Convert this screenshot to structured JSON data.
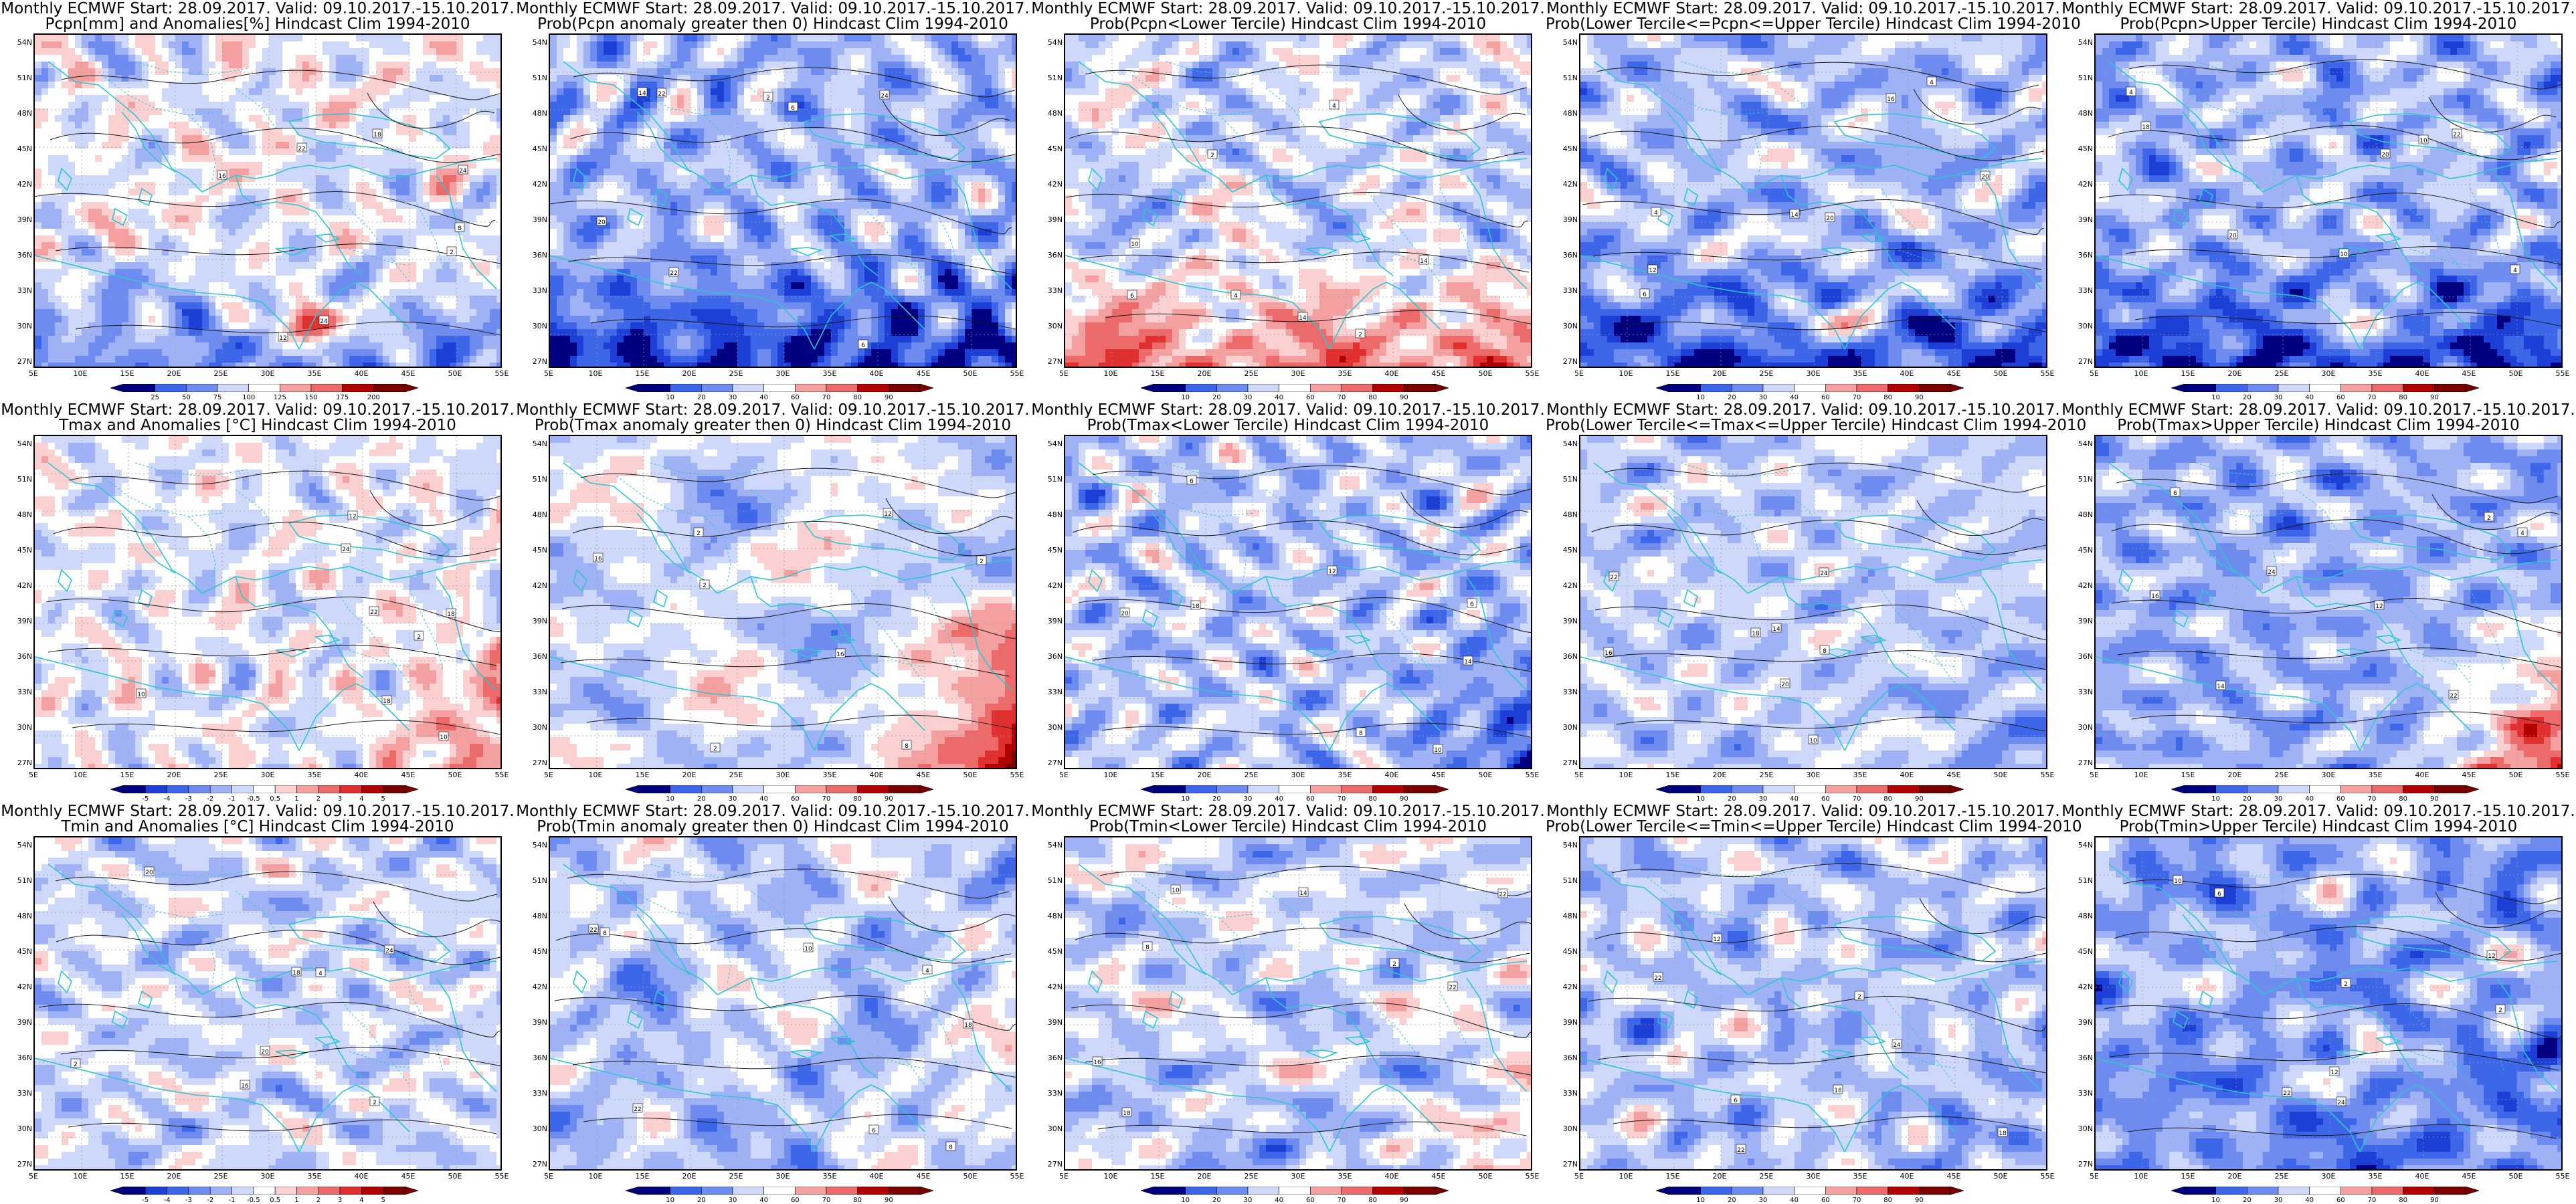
{
  "header": "Monthly ECMWF Start: 28.09.2017. Valid: 09.10.2017.-15.10.2017.",
  "lat_labels": [
    "54N",
    "51N",
    "48N",
    "45N",
    "42N",
    "39N",
    "36N",
    "33N",
    "30N",
    "27N"
  ],
  "lon_labels": [
    "5E",
    "10E",
    "15E",
    "20E",
    "25E",
    "30E",
    "35E",
    "40E",
    "45E",
    "50E",
    "55E"
  ],
  "contour_labels": [
    "2",
    "4",
    "6",
    "8",
    "10",
    "12",
    "14",
    "16",
    "18",
    "20",
    "22",
    "24"
  ],
  "colorbars": {
    "pcpn_anom": [
      "25",
      "50",
      "75",
      "100",
      "125",
      "150",
      "175",
      "200"
    ],
    "temp_anom": [
      "-5",
      "-4",
      "-3",
      "-2",
      "-1",
      "-0.5",
      "0.5",
      "1",
      "2",
      "3",
      "4",
      "5"
    ],
    "prob": [
      "10",
      "20",
      "30",
      "40",
      "60",
      "70",
      "80",
      "90"
    ]
  },
  "colors": {
    "palette": [
      "#000080",
      "#1d3fd6",
      "#3e66e8",
      "#6e8cf0",
      "#9fb2f5",
      "#cdd8fa",
      "#ffffff",
      "#fbd0d0",
      "#f4a0a0",
      "#ec6a6a",
      "#e03030",
      "#b00000",
      "#7a0000"
    ],
    "coast": "#2ec6d0",
    "contour": "#1a1a1a",
    "grid": "#9a9a9a"
  },
  "panels": [
    {
      "line2": "Pcpn[mm] and Anomalies[%] Hindcast Clim 1994-2010",
      "cbar": "pcpn_anom",
      "bias": -0.3,
      "south": -2.6,
      "southPos": 1,
      "warmEast": 0,
      "seed": 11
    },
    {
      "line2": "Prob(Pcpn anomaly greater then 0) Hindcast Clim 1994-2010",
      "cbar": "prob",
      "bias": -1.8,
      "south": -3.5,
      "southPos": 0,
      "warmEast": 0,
      "seed": 12
    },
    {
      "line2": "Prob(Pcpn<Lower Tercile) Hindcast Clim 1994-2010",
      "cbar": "prob",
      "bias": -0.9,
      "south": 3.6,
      "southPos": 0,
      "warmEast": 0,
      "seed": 13
    },
    {
      "line2": "Prob(Lower Tercile<=Pcpn<=Upper Tercile) Hindcast Clim 1994-2010",
      "cbar": "prob",
      "bias": -1.6,
      "south": -3.2,
      "southPos": 1,
      "warmEast": 0,
      "seed": 14
    },
    {
      "line2": "Prob(Pcpn>Upper Tercile) Hindcast Clim 1994-2010",
      "cbar": "prob",
      "bias": -1.8,
      "south": -3.5,
      "southPos": 1,
      "warmEast": 0,
      "seed": 15
    },
    {
      "line2": "Tmax and Anomalies [°C] Hindcast Clim 1994-2010",
      "cbar": "temp_anom",
      "bias": -0.4,
      "south": 0,
      "southPos": 0,
      "warmEast": 1.6,
      "seed": 21
    },
    {
      "line2": "Prob(Tmax anomaly greater then 0) Hindcast Clim 1994-2010",
      "cbar": "prob",
      "bias": -0.8,
      "south": 0,
      "southPos": 0,
      "warmEast": 3.0,
      "seed": 22
    },
    {
      "line2": "Prob(Tmax<Lower Tercile) Hindcast Clim 1994-2010",
      "cbar": "prob",
      "bias": -1.4,
      "south": 0,
      "southPos": 0,
      "warmEast": -1.5,
      "seed": 23
    },
    {
      "line2": "Prob(Lower Tercile<=Tmax<=Upper Tercile) Hindcast Clim 1994-2010",
      "cbar": "prob",
      "bias": -1.2,
      "south": 0,
      "southPos": 0,
      "warmEast": -0.8,
      "seed": 24
    },
    {
      "line2": "Prob(Tmax>Upper Tercile) Hindcast Clim 1994-2010",
      "cbar": "prob",
      "bias": -2.0,
      "south": 0,
      "southPos": 0,
      "warmEast": 3.0,
      "seed": 25
    },
    {
      "line2": "Tmin and Anomalies [°C] Hindcast Clim 1994-2010",
      "cbar": "temp_anom",
      "bias": -0.9,
      "south": 0,
      "southPos": 0,
      "warmEast": 0,
      "seed": 31
    },
    {
      "line2": "Prob(Tmin anomaly greater then 0) Hindcast Clim 1994-2010",
      "cbar": "prob",
      "bias": -1.2,
      "south": -0.6,
      "southPos": 0,
      "warmEast": 1.0,
      "seed": 32
    },
    {
      "line2": "Prob(Tmin<Lower Tercile) Hindcast Clim 1994-2010",
      "cbar": "prob",
      "bias": -1.0,
      "south": -0.6,
      "southPos": 0,
      "warmEast": 1.2,
      "seed": 33
    },
    {
      "line2": "Prob(Lower Tercile<=Tmin<=Upper Tercile) Hindcast Clim 1994-2010",
      "cbar": "prob",
      "bias": -1.4,
      "south": 0,
      "southPos": 0,
      "warmEast": -0.5,
      "seed": 34
    },
    {
      "line2": "Prob(Tmin>Upper Tercile) Hindcast Clim 1994-2010",
      "cbar": "prob",
      "bias": -2.2,
      "south": -1.0,
      "southPos": 0,
      "warmEast": -0.5,
      "seed": 35
    }
  ]
}
